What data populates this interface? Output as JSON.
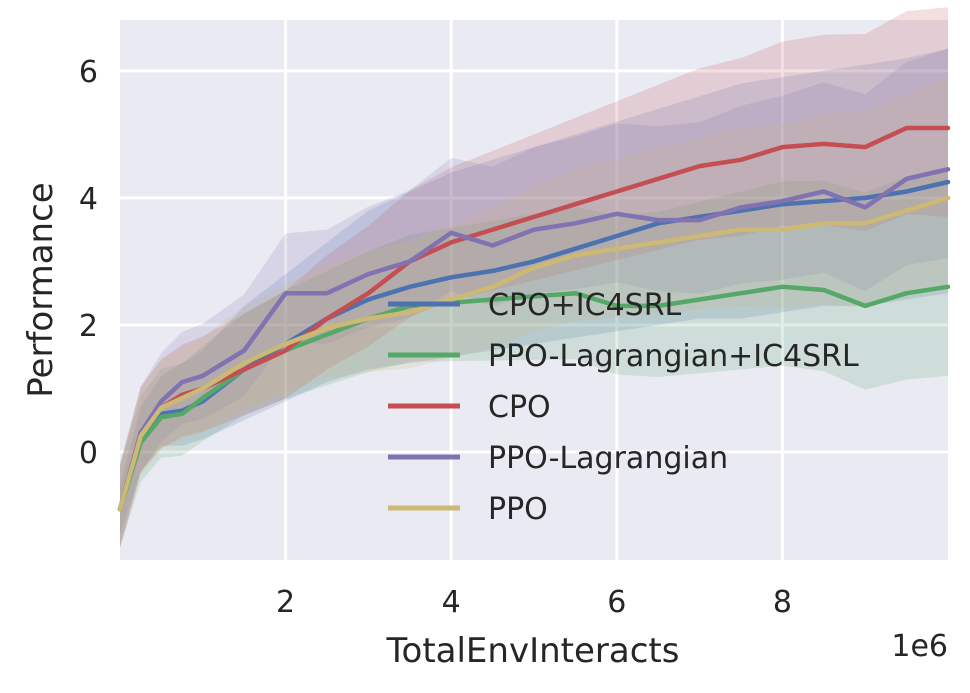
{
  "chart_data": {
    "type": "line",
    "xlabel": "TotalEnvInteracts",
    "ylabel": "Performance",
    "x_scale_label": "1e6",
    "xlim": [
      0.0,
      10.0
    ],
    "ylim": [
      -1.7,
      6.8
    ],
    "xticks": [
      2,
      4,
      6,
      8
    ],
    "xtick_labels": [
      "2",
      "4",
      "6",
      "8"
    ],
    "yticks": [
      0,
      2,
      4,
      6
    ],
    "ytick_labels": [
      "0",
      "2",
      "4",
      "6"
    ],
    "grid": true,
    "legend_position": "lower-right",
    "x": [
      0.0,
      0.25,
      0.5,
      0.75,
      1.0,
      1.5,
      2.0,
      2.5,
      3.0,
      3.5,
      4.0,
      4.5,
      5.0,
      5.5,
      6.0,
      6.5,
      7.0,
      7.5,
      8.0,
      8.5,
      9.0,
      9.5,
      10.0
    ],
    "series": [
      {
        "name": "CPO+IC4SRL",
        "color": "#4c72b0",
        "values": [
          -0.9,
          0.2,
          0.6,
          0.65,
          0.8,
          1.3,
          1.7,
          2.1,
          2.4,
          2.6,
          2.75,
          2.85,
          3.0,
          3.2,
          3.4,
          3.6,
          3.7,
          3.8,
          3.9,
          3.95,
          4.0,
          4.1,
          4.25
        ],
        "lower": [
          -1.3,
          -0.3,
          0.1,
          0.1,
          0.2,
          0.5,
          0.8,
          1.1,
          1.3,
          1.4,
          1.5,
          1.6,
          1.7,
          1.8,
          1.9,
          2.0,
          2.1,
          2.1,
          2.2,
          2.3,
          2.3,
          2.4,
          2.5
        ],
        "upper": [
          -0.5,
          0.7,
          1.2,
          1.4,
          1.6,
          2.3,
          2.8,
          3.3,
          3.8,
          4.1,
          4.4,
          4.6,
          4.8,
          5.0,
          5.2,
          5.4,
          5.6,
          5.8,
          5.9,
          6.0,
          6.1,
          6.2,
          6.35
        ]
      },
      {
        "name": "PPO-Lagrangian+IC4SRL",
        "color": "#55a868",
        "values": [
          -0.9,
          0.15,
          0.55,
          0.6,
          0.85,
          1.3,
          1.6,
          1.85,
          2.1,
          2.3,
          2.35,
          2.4,
          2.45,
          2.5,
          2.3,
          2.3,
          2.4,
          2.5,
          2.6,
          2.55,
          2.3,
          2.5,
          2.6
        ]
      },
      {
        "name": "CPO",
        "color": "#c44e52",
        "values": [
          -0.9,
          0.3,
          0.7,
          0.9,
          1.0,
          1.3,
          1.6,
          2.1,
          2.5,
          3.0,
          3.3,
          3.5,
          3.7,
          3.9,
          4.1,
          4.3,
          4.5,
          4.6,
          4.8,
          4.85,
          4.8,
          5.1,
          5.1
        ]
      },
      {
        "name": "PPO-Lagrangian",
        "color": "#8172b2",
        "values": [
          -0.9,
          0.3,
          0.8,
          1.1,
          1.2,
          1.6,
          2.5,
          2.5,
          2.8,
          3.0,
          3.45,
          3.25,
          3.5,
          3.6,
          3.75,
          3.65,
          3.65,
          3.85,
          3.95,
          4.1,
          3.85,
          4.3,
          4.45
        ]
      },
      {
        "name": "PPO",
        "color": "#ccb974",
        "values": [
          -0.9,
          0.25,
          0.7,
          0.85,
          1.0,
          1.4,
          1.7,
          1.95,
          2.1,
          2.2,
          2.4,
          2.6,
          2.9,
          3.1,
          3.2,
          3.3,
          3.4,
          3.5,
          3.5,
          3.6,
          3.6,
          3.8,
          4.0
        ]
      }
    ]
  }
}
